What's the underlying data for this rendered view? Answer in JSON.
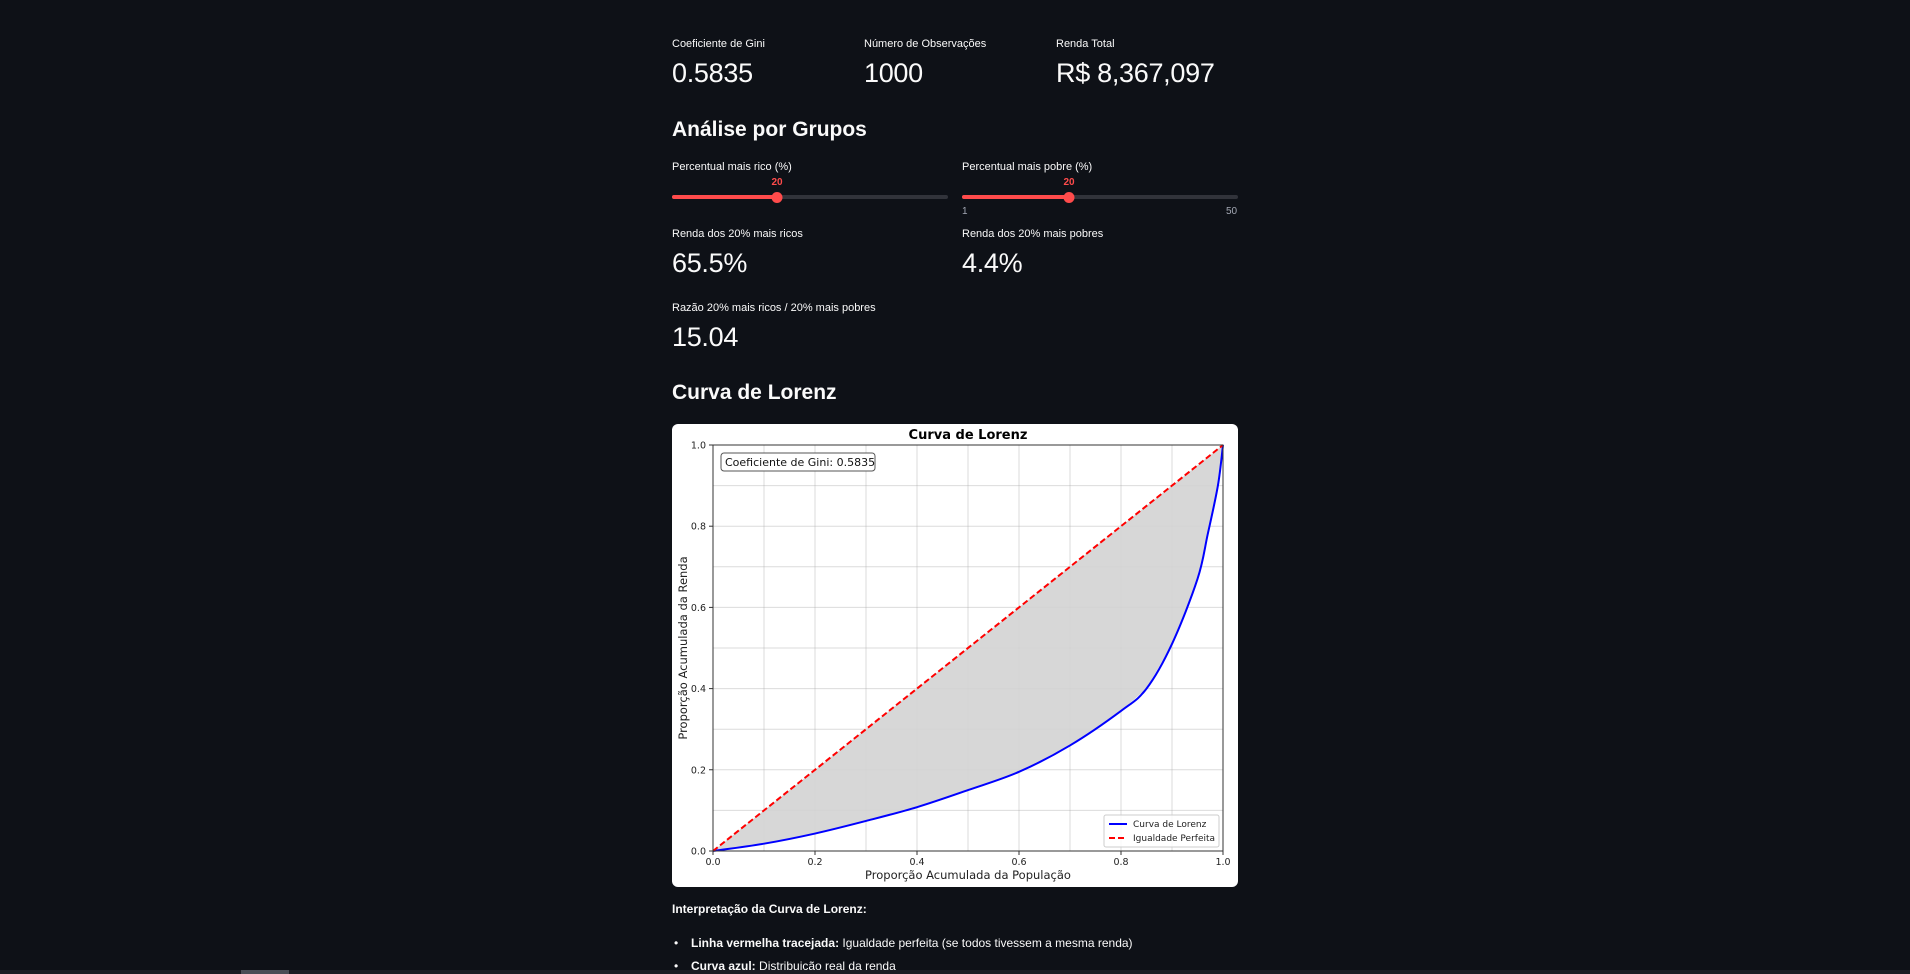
{
  "metrics_top": [
    {
      "label": "Coeficiente de Gini",
      "value": "0.5835"
    },
    {
      "label": "Número de Observações",
      "value": "1000"
    },
    {
      "label": "Renda Total",
      "value": "R$ 8,367,097"
    }
  ],
  "groups": {
    "heading": "Análise por Grupos",
    "slider_rich": {
      "label": "Percentual mais rico (%)",
      "value": "20",
      "min": 1,
      "max": 50,
      "value_num": 20
    },
    "slider_poor": {
      "label": "Percentual mais pobre (%)",
      "value": "20",
      "min_label": "1",
      "max_label": "50",
      "min": 1,
      "max": 50,
      "value_num": 20
    },
    "metric_rich": {
      "label": "Renda dos 20% mais ricos",
      "value": "65.5%"
    },
    "metric_poor": {
      "label": "Renda dos 20% mais pobres",
      "value": "4.4%"
    },
    "metric_ratio": {
      "label": "Razão 20% mais ricos / 20% mais pobres",
      "value": "15.04"
    }
  },
  "lorenz": {
    "heading": "Curva de Lorenz"
  },
  "interpretation": {
    "title": "Interpretação da Curva de Lorenz:",
    "bullets": [
      {
        "bold": "Linha vermelha tracejada:",
        "text": " Igualdade perfeita (se todos tivessem a mesma renda)"
      },
      {
        "bold": "Curva azul:",
        "text": " Distribuição real da renda"
      }
    ],
    "bullet_char": "•"
  },
  "colors": {
    "background": "#0e1117",
    "accent": "#ff4b4b",
    "lorenz_line": "#0000ff",
    "equality_line": "#ff0000",
    "fill": "#d3d3d3"
  },
  "chart_data": {
    "type": "line",
    "title": "Curva de Lorenz",
    "xlabel": "Proporção Acumulada da População",
    "ylabel": "Proporção Acumulada da Renda",
    "xlim": [
      0,
      1
    ],
    "ylim": [
      0,
      1
    ],
    "xticks": [
      "0.0",
      "0.2",
      "0.4",
      "0.6",
      "0.8",
      "1.0"
    ],
    "yticks": [
      "0.0",
      "0.2",
      "0.4",
      "0.6",
      "0.8",
      "1.0"
    ],
    "grid": true,
    "legend_position": "lower right",
    "annotation": "Coeficiente de Gini: 0.5835",
    "fill_between": {
      "color": "#d3d3d3",
      "between": [
        "Igualdade Perfeita",
        "Curva de Lorenz"
      ]
    },
    "series": [
      {
        "name": "Curva de Lorenz",
        "style": "solid",
        "color": "#0000ff",
        "x": [
          0.0,
          0.1,
          0.2,
          0.3,
          0.4,
          0.5,
          0.6,
          0.7,
          0.8,
          0.85,
          0.9,
          0.95,
          0.97,
          0.99,
          1.0
        ],
        "y": [
          0.0,
          0.018,
          0.043,
          0.074,
          0.108,
          0.15,
          0.195,
          0.26,
          0.345,
          0.4,
          0.51,
          0.67,
          0.78,
          0.9,
          1.0
        ]
      },
      {
        "name": "Igualdade Perfeita",
        "style": "dashed",
        "color": "#ff0000",
        "x": [
          0.0,
          1.0
        ],
        "y": [
          0.0,
          1.0
        ]
      }
    ]
  }
}
